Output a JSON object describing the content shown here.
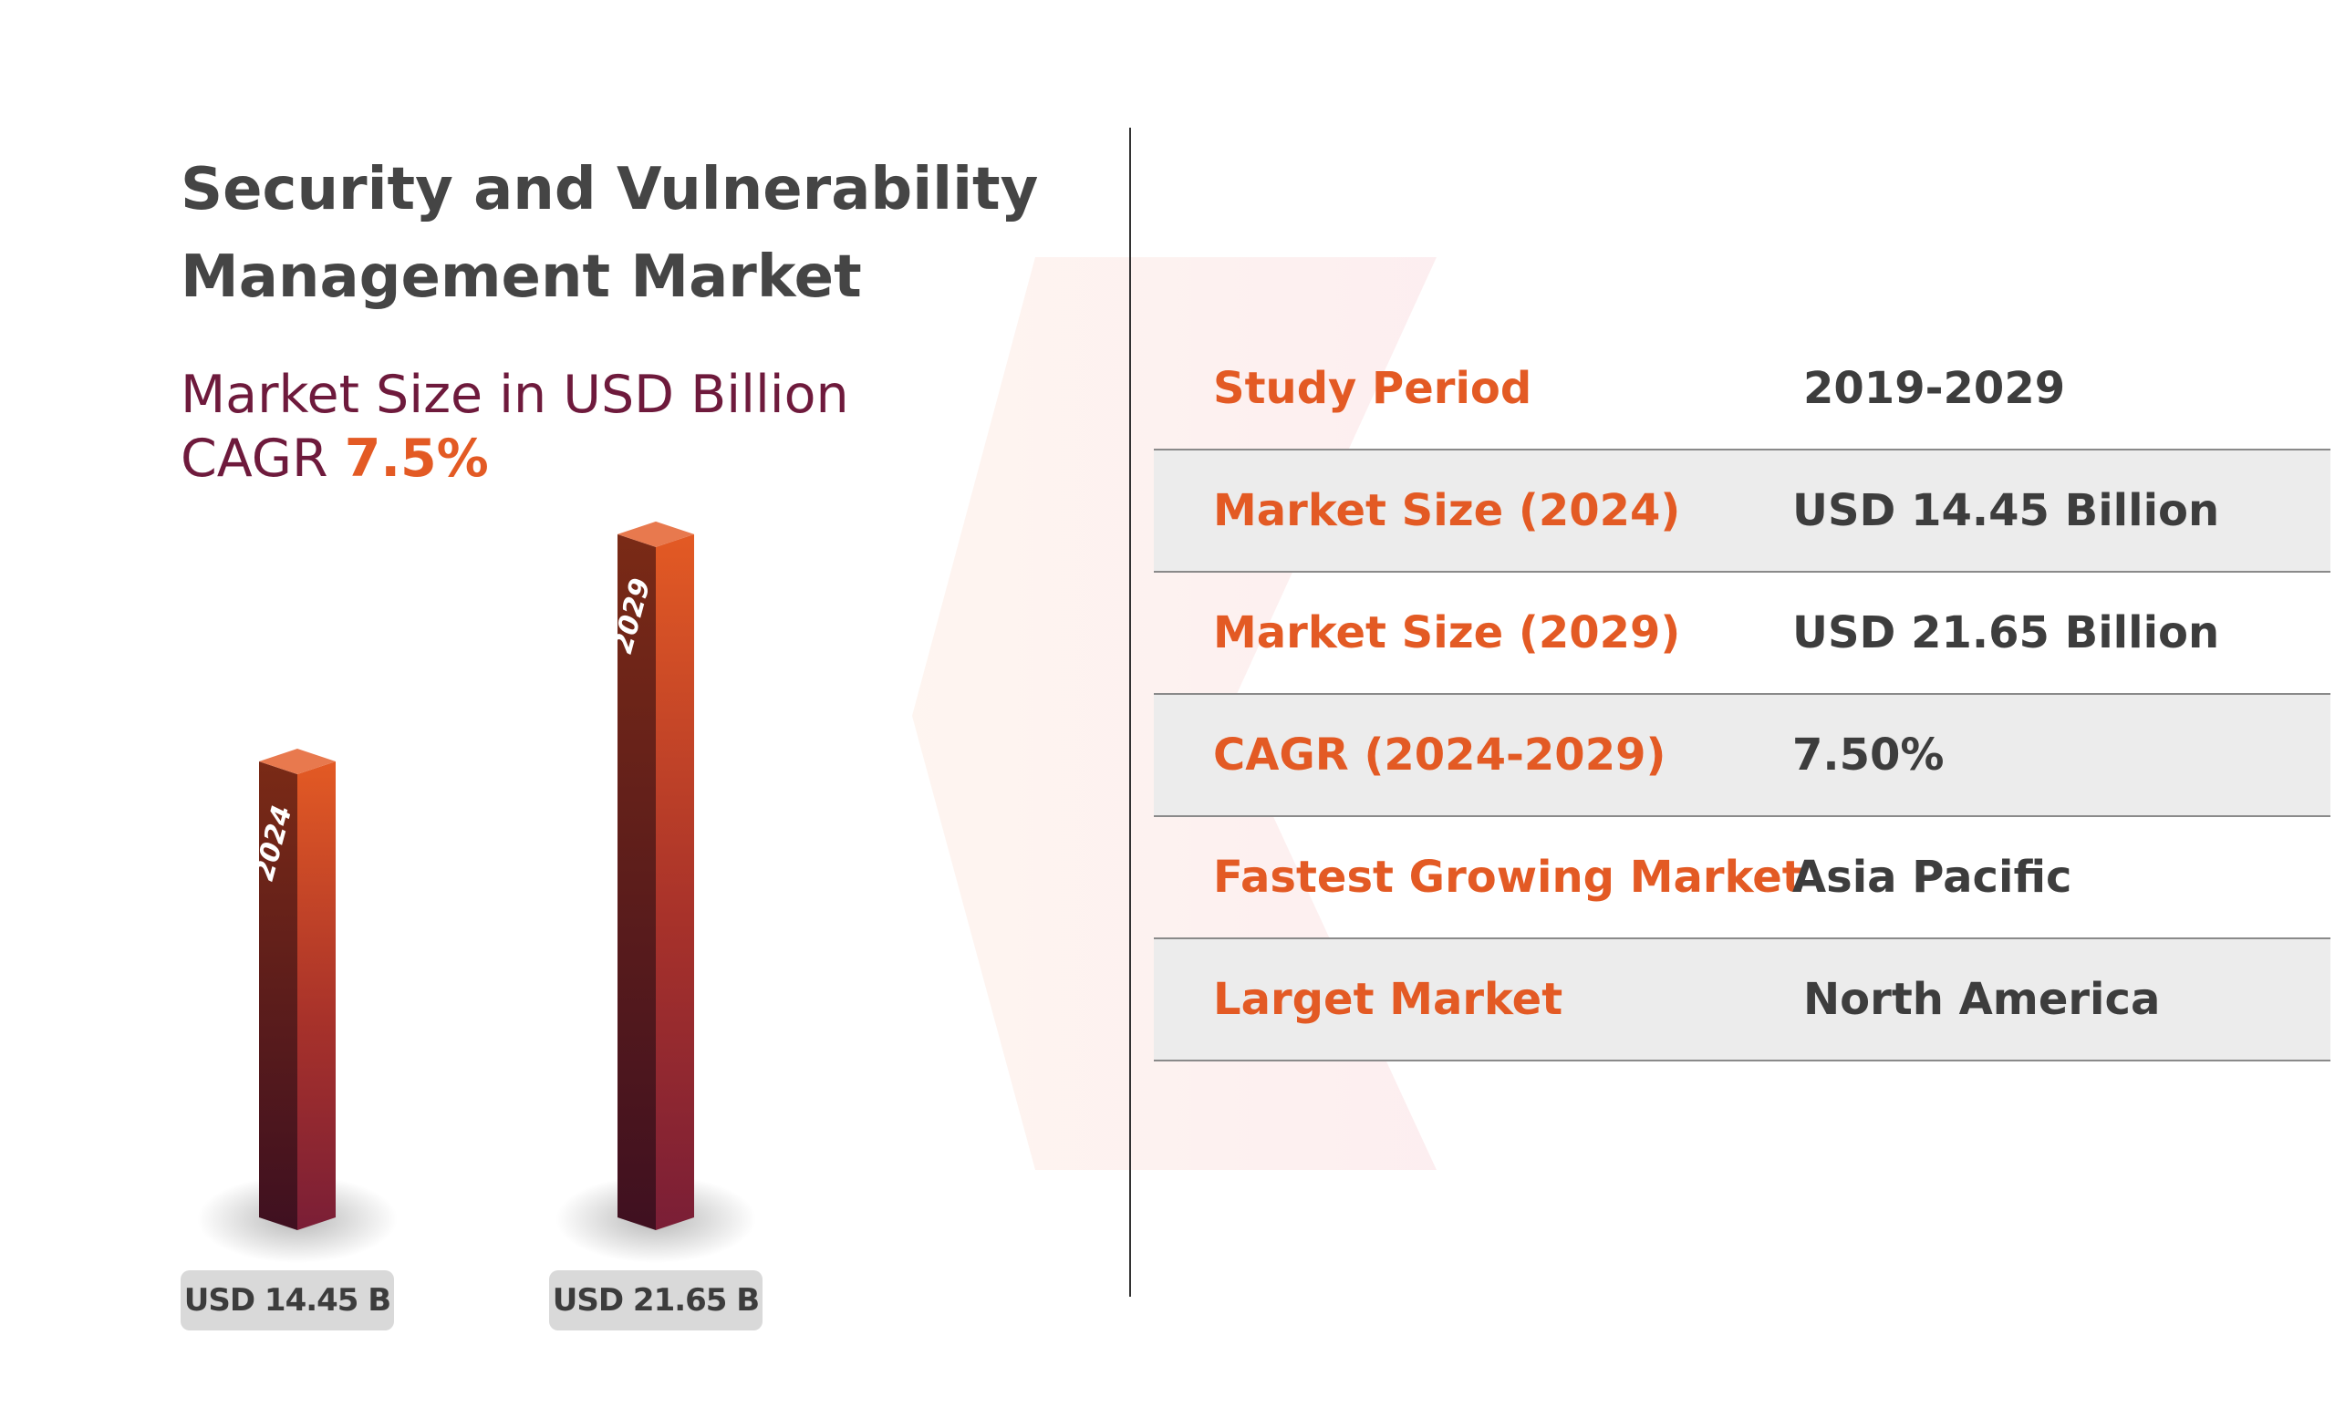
{
  "header": {
    "title": "Security and Vulnerability Management Market",
    "subtitle": "Market Size in USD Billion",
    "cagr_prefix": "CAGR",
    "cagr_value": "7.5%"
  },
  "chart_data": {
    "type": "bar",
    "title": "Security and Vulnerability Management Market",
    "subtitle": "Market Size in USD Billion",
    "categories": [
      "2024",
      "2029"
    ],
    "values": [
      14.45,
      21.65
    ],
    "value_labels": [
      "USD 14.45 B",
      "USD 21.65 B"
    ],
    "cagr": "7.5%",
    "grid": false
  },
  "summary": {
    "rows": [
      {
        "label": "Study Period",
        "value": "2019-2029"
      },
      {
        "label": "Market Size (2024)",
        "value": "USD 14.45 Billion"
      },
      {
        "label": "Market Size (2029)",
        "value": "USD 21.65 Billion"
      },
      {
        "label": "CAGR (2024-2029)",
        "value": "7.50%"
      },
      {
        "label": "Fastest Growing Market",
        "value": "Asia Pacific"
      },
      {
        "label": "Larget Market",
        "value": "North America"
      }
    ]
  },
  "colors": {
    "accent": "#e35a24",
    "subtitle": "#6e1a3c",
    "bar_top": "#e35a24",
    "bar_bottom": "#4a1424",
    "label_bg": "#d9d9d9",
    "row_shade": "#ececec"
  }
}
